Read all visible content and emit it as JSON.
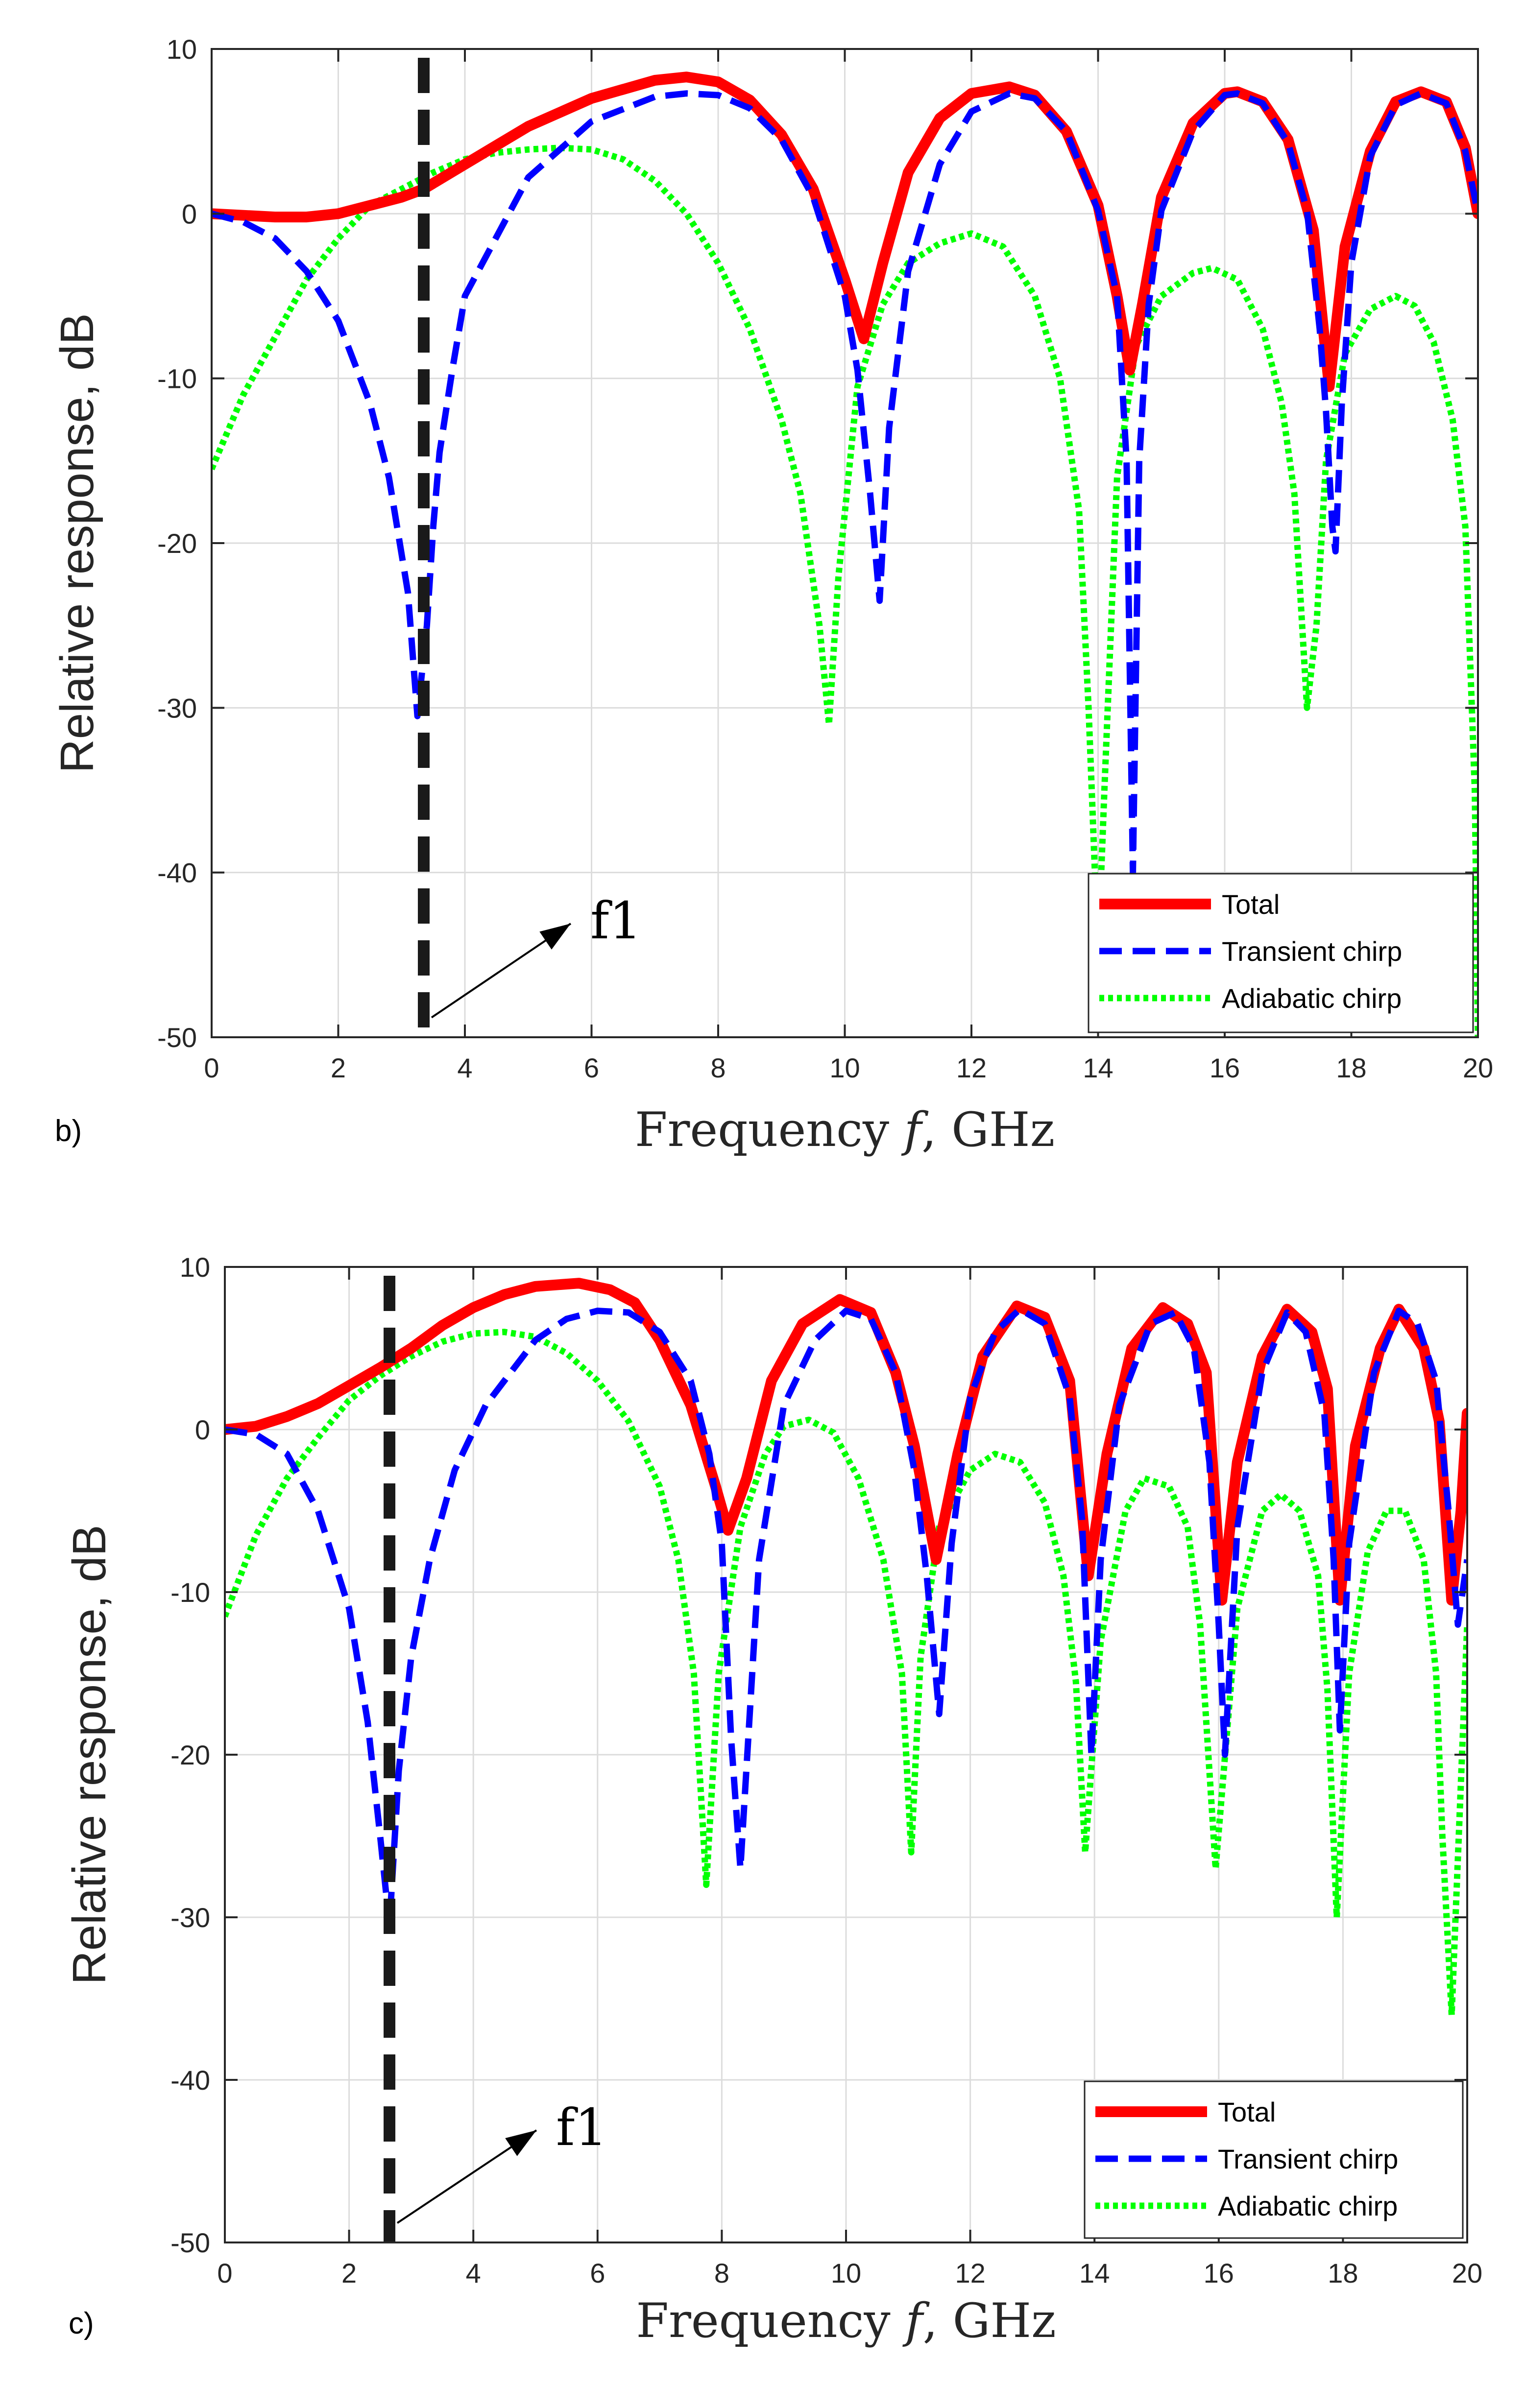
{
  "chart_data": [
    {
      "panel": "b)",
      "type": "line",
      "xlabel_text": "Frequency",
      "xlabel_var": "f",
      "xlabel_unit": ", GHz",
      "ylabel": "Relative response, dB",
      "xlim": [
        0,
        20
      ],
      "ylim": [
        -50,
        10
      ],
      "xticks": [
        0,
        2,
        4,
        6,
        8,
        10,
        12,
        14,
        16,
        18,
        20
      ],
      "yticks": [
        10,
        0,
        -10,
        -20,
        -30,
        -40,
        -50
      ],
      "grid": true,
      "legend_position": "bottom-right",
      "annotation": {
        "text": "f1",
        "x": 3.35
      },
      "marker_line_x": 3.35,
      "series": [
        {
          "name": "Total",
          "color": "#ff0000",
          "style": "solid",
          "x": [
            0,
            0.5,
            1,
            1.5,
            2,
            2.5,
            3,
            3.35,
            4,
            5,
            6,
            7,
            7.5,
            8,
            8.5,
            9,
            9.5,
            10,
            10.3,
            10.6,
            11,
            11.5,
            12,
            12.6,
            13,
            13.5,
            14,
            14.3,
            14.5,
            14.7,
            15,
            15.5,
            16,
            16.2,
            16.6,
            17,
            17.4,
            17.65,
            17.9,
            18.3,
            18.7,
            19.1,
            19.5,
            19.8,
            20
          ],
          "y": [
            0,
            -0.1,
            -0.2,
            -0.2,
            0,
            0.5,
            1.0,
            1.5,
            3.0,
            5.3,
            7.0,
            8.1,
            8.3,
            8.0,
            6.9,
            4.8,
            1.5,
            -4.0,
            -7.6,
            -3.0,
            2.5,
            5.8,
            7.3,
            7.7,
            7.2,
            5.0,
            0.5,
            -5.0,
            -9.5,
            -5.5,
            1.0,
            5.5,
            7.3,
            7.4,
            6.8,
            4.5,
            -1.0,
            -10.5,
            -2.0,
            3.8,
            6.8,
            7.4,
            6.8,
            4.0,
            0
          ]
        },
        {
          "name": "Transient chirp",
          "color": "#0000ff",
          "style": "dashed",
          "x": [
            0,
            0.5,
            1,
            1.5,
            2,
            2.5,
            2.8,
            3.1,
            3.25,
            3.4,
            3.5,
            3.6,
            3.8,
            4,
            5,
            6,
            7,
            7.5,
            8,
            8.5,
            9,
            9.5,
            10,
            10.2,
            10.4,
            10.55,
            10.7,
            11,
            11.5,
            12,
            12.6,
            13,
            13.5,
            14,
            14.3,
            14.45,
            14.55,
            14.65,
            14.8,
            15,
            15.5,
            16,
            16.2,
            16.6,
            17,
            17.3,
            17.5,
            17.6,
            17.7,
            17.75,
            17.85,
            18,
            18.3,
            18.7,
            19.1,
            19.5,
            19.8,
            20
          ],
          "y": [
            0,
            -0.5,
            -1.5,
            -3.5,
            -6.5,
            -11.5,
            -16.0,
            -23.0,
            -30.5,
            -25.0,
            -19.0,
            -14.5,
            -9.5,
            -5.0,
            2.2,
            5.6,
            7.1,
            7.3,
            7.2,
            6.4,
            4.5,
            1.0,
            -5.0,
            -9.5,
            -17.0,
            -23.5,
            -13.0,
            -3.5,
            3.0,
            6.2,
            7.3,
            7.0,
            5.0,
            0.2,
            -5.0,
            -15.0,
            -40.0,
            -15.0,
            -5.5,
            0.2,
            5.0,
            7.2,
            7.3,
            6.7,
            4.3,
            0.2,
            -7.0,
            -12.0,
            -19.0,
            -20.5,
            -11.5,
            -3.0,
            3.5,
            6.6,
            7.3,
            6.7,
            3.8,
            0
          ]
        },
        {
          "name": "Adiabatic chirp",
          "color": "#00ff00",
          "style": "dotted",
          "x": [
            0,
            0.5,
            1,
            1.5,
            2,
            2.5,
            3,
            3.5,
            4,
            4.5,
            5,
            5.5,
            6,
            6.5,
            7,
            7.5,
            8,
            8.5,
            9,
            9.3,
            9.6,
            9.75,
            9.9,
            10.2,
            10.6,
            11,
            11.5,
            12,
            12.5,
            13,
            13.4,
            13.7,
            13.85,
            14.0,
            14.1,
            14.3,
            14.6,
            15,
            15.5,
            15.8,
            16.2,
            16.6,
            16.9,
            17.1,
            17.3,
            17.45,
            17.6,
            17.9,
            18.3,
            18.7,
            19.0,
            19.3,
            19.6,
            19.8,
            19.95,
            20
          ],
          "y": [
            -15.5,
            -11.0,
            -7.5,
            -4.0,
            -1.5,
            0.5,
            1.5,
            2.5,
            3.3,
            3.7,
            3.9,
            4.0,
            3.9,
            3.3,
            2.0,
            0,
            -3.0,
            -7.0,
            -12.5,
            -17.0,
            -25.0,
            -31.0,
            -22.0,
            -10.5,
            -5.5,
            -3.0,
            -1.8,
            -1.2,
            -2.0,
            -5.0,
            -10.0,
            -18.0,
            -30.0,
            -45.0,
            -35.0,
            -16.0,
            -8.0,
            -5.0,
            -3.6,
            -3.3,
            -4.0,
            -7.0,
            -11.5,
            -17.0,
            -30.0,
            -25.0,
            -15.0,
            -8.5,
            -5.8,
            -5.0,
            -5.6,
            -7.8,
            -12.5,
            -19.0,
            -35.0,
            -50.0
          ]
        }
      ]
    },
    {
      "panel": "c)",
      "type": "line",
      "xlabel_text": "Frequency",
      "xlabel_var": "f",
      "xlabel_unit": ", GHz",
      "ylabel": "Relative response, dB",
      "xlim": [
        0,
        20
      ],
      "ylim": [
        -50,
        10
      ],
      "xticks": [
        0,
        2,
        4,
        6,
        8,
        10,
        12,
        14,
        16,
        18,
        20
      ],
      "yticks": [
        10,
        0,
        -10,
        -20,
        -30,
        -40,
        -50
      ],
      "grid": true,
      "legend_position": "bottom-right",
      "annotation": {
        "text": "f1",
        "x": 2.65
      },
      "marker_line_x": 2.65,
      "series": [
        {
          "name": "Total",
          "color": "#ff0000",
          "style": "solid",
          "x": [
            0,
            0.5,
            1,
            1.5,
            2,
            2.5,
            3,
            3.5,
            4,
            4.5,
            5,
            5.7,
            6.2,
            6.6,
            7,
            7.5,
            7.9,
            8.1,
            8.4,
            8.8,
            9.3,
            9.9,
            10.4,
            10.8,
            11.1,
            11.45,
            11.8,
            12.2,
            12.75,
            13.2,
            13.6,
            13.9,
            14.2,
            14.6,
            15.1,
            15.5,
            15.8,
            16.05,
            16.3,
            16.7,
            17.1,
            17.5,
            17.75,
            17.95,
            18.2,
            18.6,
            18.9,
            19.3,
            19.55,
            19.75,
            19.9,
            20
          ],
          "y": [
            0,
            0.2,
            0.8,
            1.6,
            2.7,
            3.8,
            5.0,
            6.4,
            7.5,
            8.3,
            8.8,
            9.0,
            8.6,
            7.8,
            5.5,
            1.5,
            -3.5,
            -6.2,
            -3.0,
            3.0,
            6.5,
            8.0,
            7.2,
            3.5,
            -1.0,
            -8.0,
            -1.5,
            4.5,
            7.6,
            6.9,
            3.0,
            -9.0,
            -1.5,
            5.0,
            7.5,
            6.5,
            3.5,
            -10.5,
            -2.0,
            4.5,
            7.4,
            6.0,
            2.5,
            -10.5,
            -1.0,
            5.0,
            7.4,
            5.0,
            0.5,
            -10.5,
            -5.0,
            1.0
          ]
        },
        {
          "name": "Transient chirp",
          "color": "#0000ff",
          "style": "dashed",
          "x": [
            0,
            0.5,
            1,
            1.5,
            2,
            2.3,
            2.5,
            2.65,
            2.8,
            3.0,
            3.3,
            3.7,
            4.2,
            5,
            5.5,
            6,
            6.5,
            7,
            7.5,
            7.8,
            8.0,
            8.15,
            8.3,
            8.6,
            9.0,
            9.5,
            10.0,
            10.4,
            10.8,
            11.1,
            11.3,
            11.5,
            11.7,
            12.0,
            12.4,
            12.8,
            13.2,
            13.6,
            13.8,
            13.95,
            14.1,
            14.4,
            14.9,
            15.3,
            15.6,
            15.85,
            16.0,
            16.1,
            16.3,
            16.7,
            17.1,
            17.4,
            17.7,
            17.85,
            17.95,
            18.1,
            18.5,
            18.9,
            19.2,
            19.5,
            19.7,
            19.85,
            20
          ],
          "y": [
            0,
            -0.3,
            -1.5,
            -5.0,
            -11.0,
            -18.0,
            -25.0,
            -30.5,
            -21.0,
            -14.0,
            -8.0,
            -2.5,
            1.5,
            5.5,
            6.8,
            7.3,
            7.2,
            6.0,
            3.0,
            -1.5,
            -7.0,
            -19.0,
            -27.0,
            -8.0,
            1.5,
            5.5,
            7.3,
            6.8,
            3.5,
            -2.5,
            -9.0,
            -17.5,
            -7.0,
            2.0,
            6.0,
            7.4,
            6.5,
            2.0,
            -5.5,
            -20.0,
            -8.0,
            1.5,
            6.5,
            7.2,
            5.0,
            -2.0,
            -12.0,
            -20.0,
            -6.0,
            3.5,
            7.2,
            6.0,
            1.0,
            -8.0,
            -18.5,
            -7.0,
            3.5,
            7.3,
            6.5,
            3.0,
            -5.0,
            -12.0,
            -8.0
          ]
        },
        {
          "name": "Adiabatic chirp",
          "color": "#00ff00",
          "style": "dotted",
          "x": [
            0,
            0.5,
            1,
            1.5,
            2,
            2.5,
            3,
            3.5,
            4,
            4.5,
            5,
            5.5,
            6,
            6.5,
            7,
            7.3,
            7.55,
            7.75,
            7.95,
            8.3,
            8.7,
            9.0,
            9.4,
            9.8,
            10.2,
            10.6,
            10.9,
            11.05,
            11.2,
            11.5,
            12.0,
            12.4,
            12.8,
            13.2,
            13.5,
            13.7,
            13.85,
            14.1,
            14.5,
            14.8,
            15.2,
            15.5,
            15.7,
            15.8,
            15.95,
            16.3,
            16.7,
            17.0,
            17.3,
            17.6,
            17.75,
            17.9,
            18.1,
            18.4,
            18.7,
            19.0,
            19.3,
            19.5,
            19.6,
            19.75,
            20
          ],
          "y": [
            -11.5,
            -6.5,
            -3.0,
            -0.5,
            1.8,
            3.3,
            4.5,
            5.4,
            5.9,
            6.0,
            5.7,
            4.7,
            3.0,
            0.5,
            -3.5,
            -8.0,
            -15.0,
            -28.0,
            -15.0,
            -6.0,
            -1.5,
            0.2,
            0.6,
            -0.2,
            -3.0,
            -8.0,
            -15.0,
            -26.0,
            -14.0,
            -6.0,
            -2.5,
            -1.5,
            -2.0,
            -4.5,
            -9.0,
            -15.5,
            -26.0,
            -13.0,
            -5.0,
            -3.0,
            -3.5,
            -6.0,
            -12.0,
            -18.0,
            -27.0,
            -11.0,
            -5.0,
            -4.0,
            -5.0,
            -9.0,
            -16.0,
            -30.0,
            -15.0,
            -7.5,
            -5.0,
            -5.0,
            -8.0,
            -15.0,
            -25.0,
            -36.0,
            -12.0
          ]
        }
      ]
    }
  ]
}
